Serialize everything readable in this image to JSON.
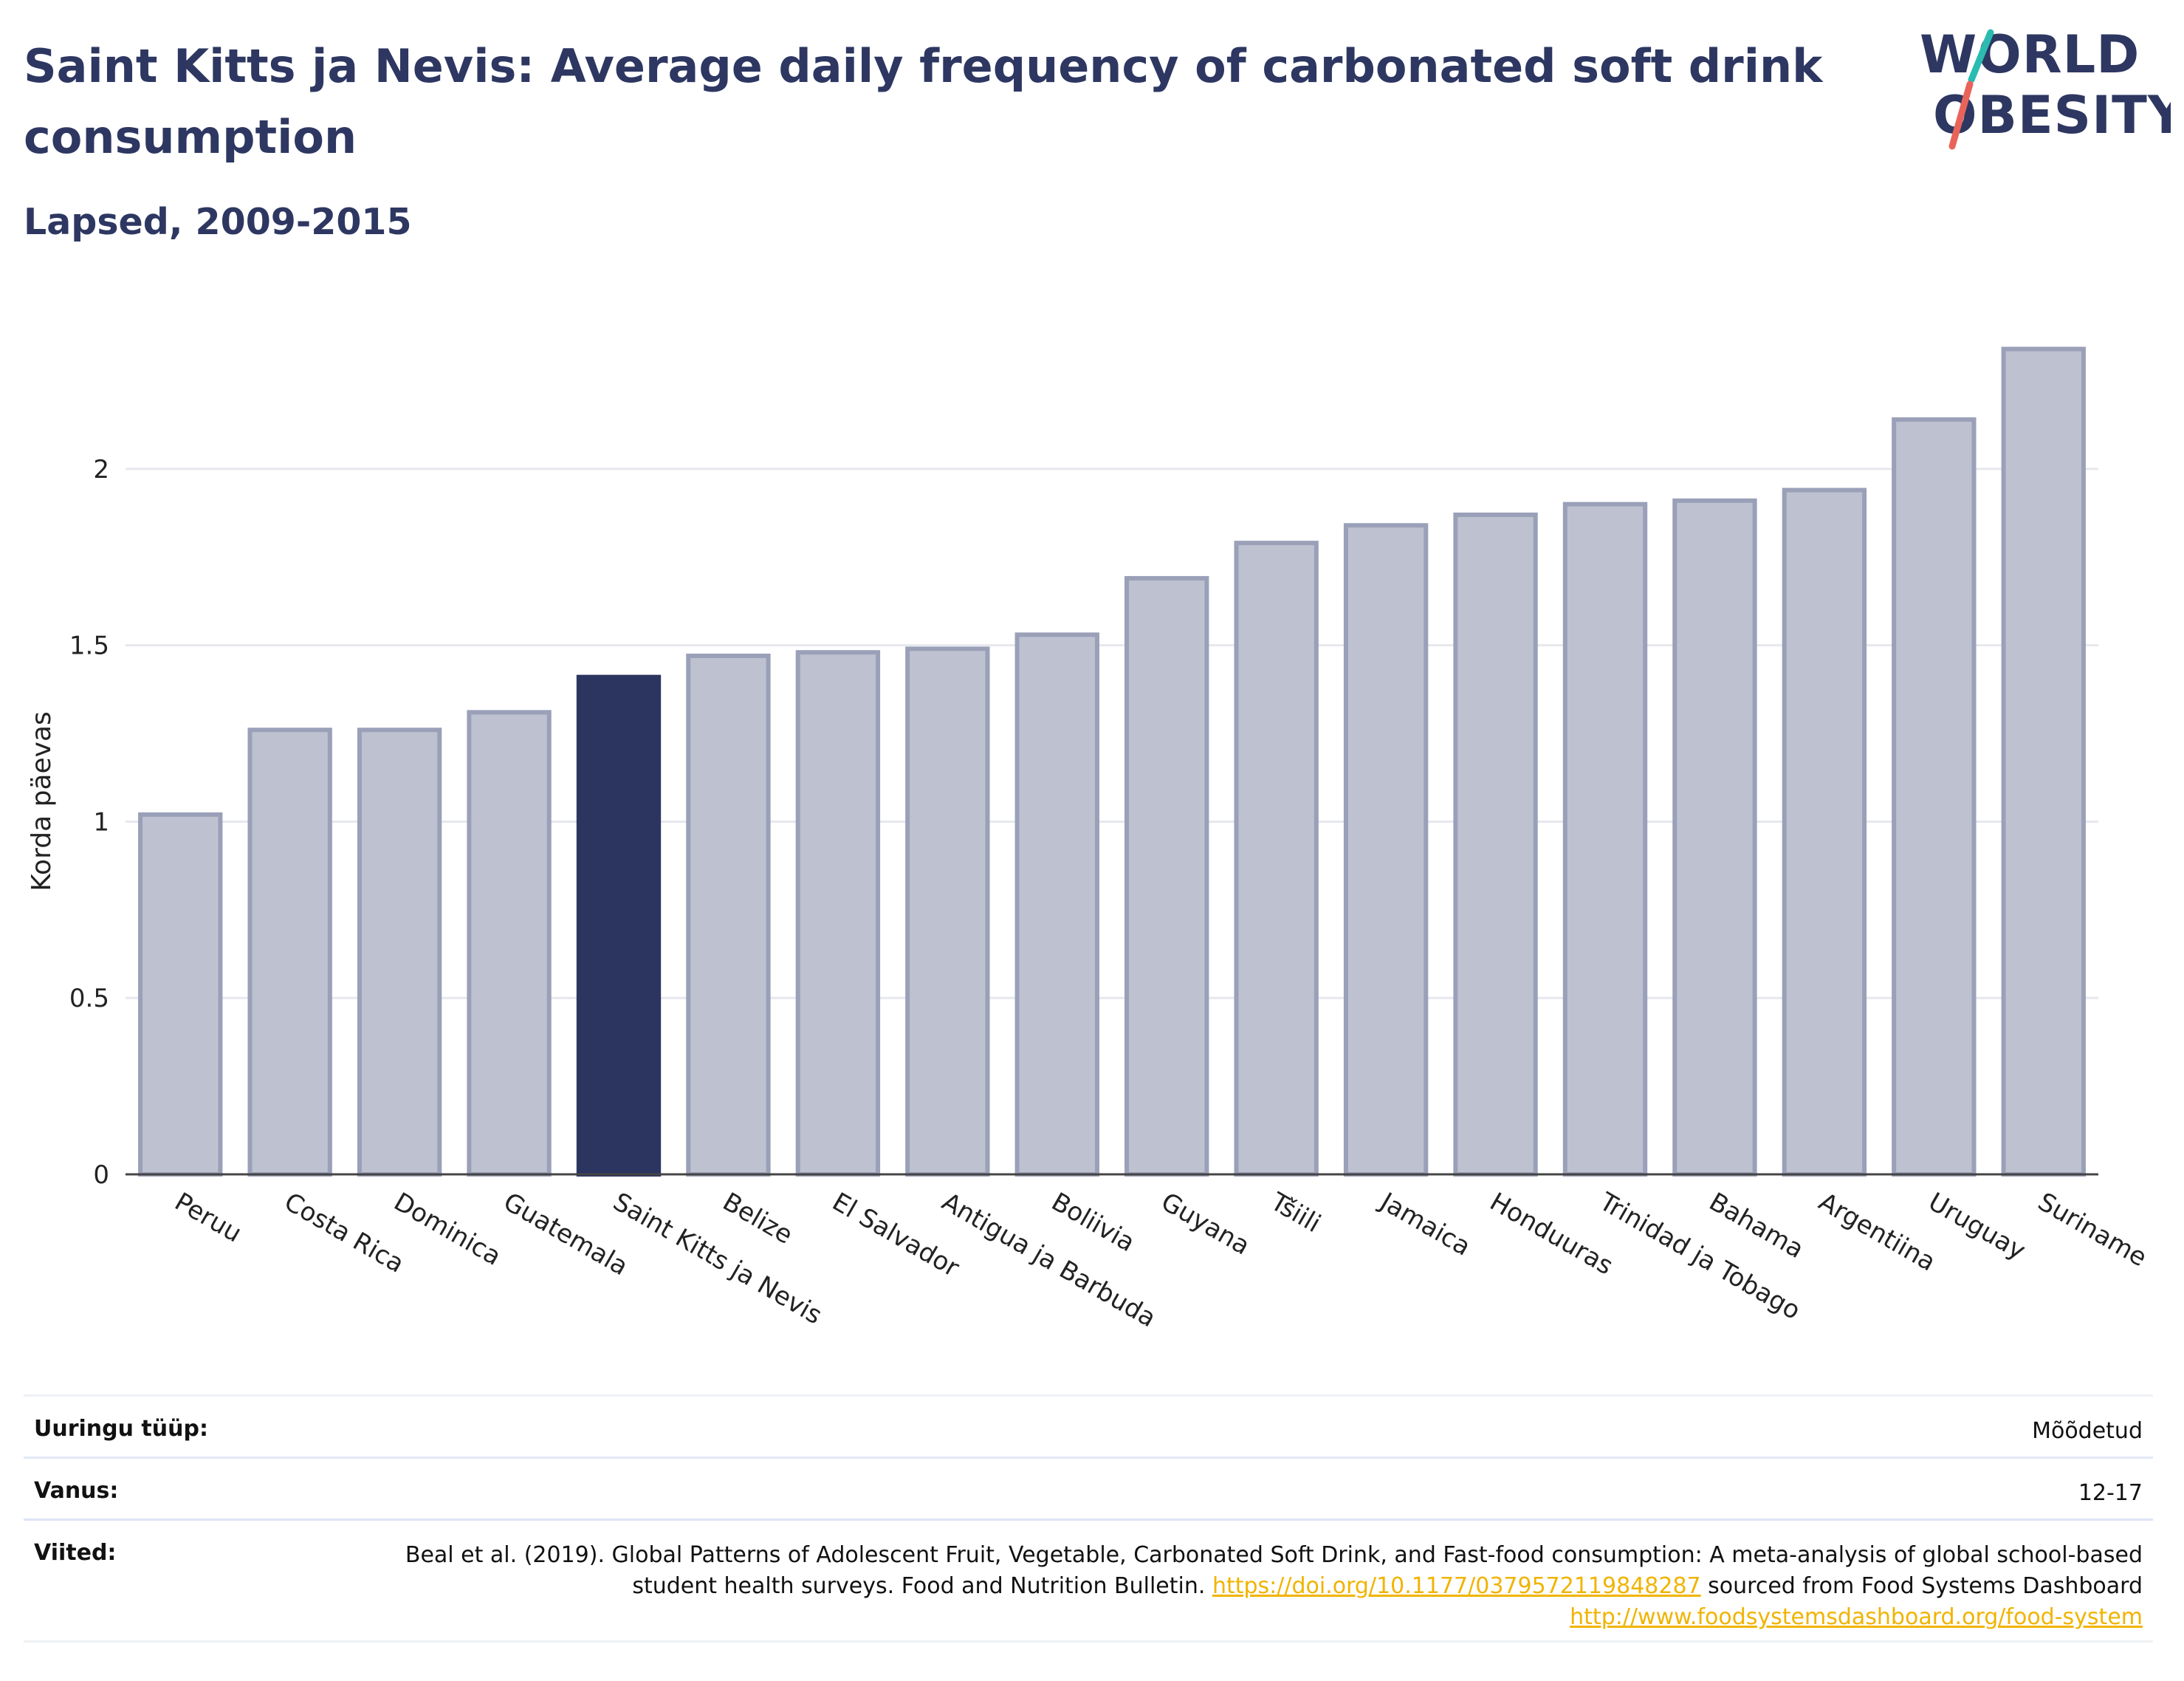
{
  "title": "Saint Kitts ja Nevis: Average daily frequency of carbonated soft drink consumption",
  "subtitle": "Lapsed, 2009-2015",
  "logo": {
    "line1": "WORLD",
    "line2": "OBESITY",
    "accent_colors": [
      "#2bbbb0",
      "#e8645a"
    ]
  },
  "colors": {
    "highlight": "#2b3560",
    "bar": "#bec2d0",
    "bar_stroke": "#9aa0b8",
    "title": "#2d3761"
  },
  "chart_data": {
    "type": "bar",
    "title": "Saint Kitts ja Nevis: Average daily frequency of carbonated soft drink consumption",
    "subtitle": "Lapsed, 2009-2015",
    "xlabel": "",
    "ylabel": "Korda päevas",
    "ylim": [
      0,
      2.45
    ],
    "yticks": [
      0,
      0.5,
      1,
      1.5,
      2
    ],
    "ytick_labels": [
      "0",
      "0.5",
      "1",
      "1.5",
      "2"
    ],
    "grid": true,
    "highlight": "Saint Kitts ja Nevis",
    "categories": [
      "Peruu",
      "Costa Rica",
      "Dominica",
      "Guatemala",
      "Saint Kitts ja Nevis",
      "Belize",
      "El Salvador",
      "Antigua ja Barbuda",
      "Boliivia",
      "Guyana",
      "Tšiili",
      "Jamaica",
      "Honduuras",
      "Trinidad ja Tobago",
      "Bahama",
      "Argentiina",
      "Uruguay",
      "Suriname"
    ],
    "values": [
      1.02,
      1.26,
      1.26,
      1.31,
      1.41,
      1.47,
      1.48,
      1.49,
      1.53,
      1.69,
      1.79,
      1.84,
      1.87,
      1.9,
      1.91,
      1.94,
      2.14,
      2.34
    ]
  },
  "info": {
    "survey_type_label": "Uuringu tüüp:",
    "survey_type_value": "Mõõdetud",
    "age_label": "Vanus:",
    "age_value": "12-17",
    "refs_label": "Viited:",
    "refs_text_1": "Beal et al. (2019). Global Patterns of Adolescent Fruit, Vegetable, Carbonated Soft Drink, and Fast-food consumption: A meta-analysis of global school-based student health surveys. Food and Nutrition Bulletin.",
    "refs_link_1": "https://doi.org/10.1177/0379572119848287",
    "refs_text_2": "sourced from Food Systems Dashboard",
    "refs_link_2": "http://www.foodsystemsdashboard.org/food-system"
  }
}
